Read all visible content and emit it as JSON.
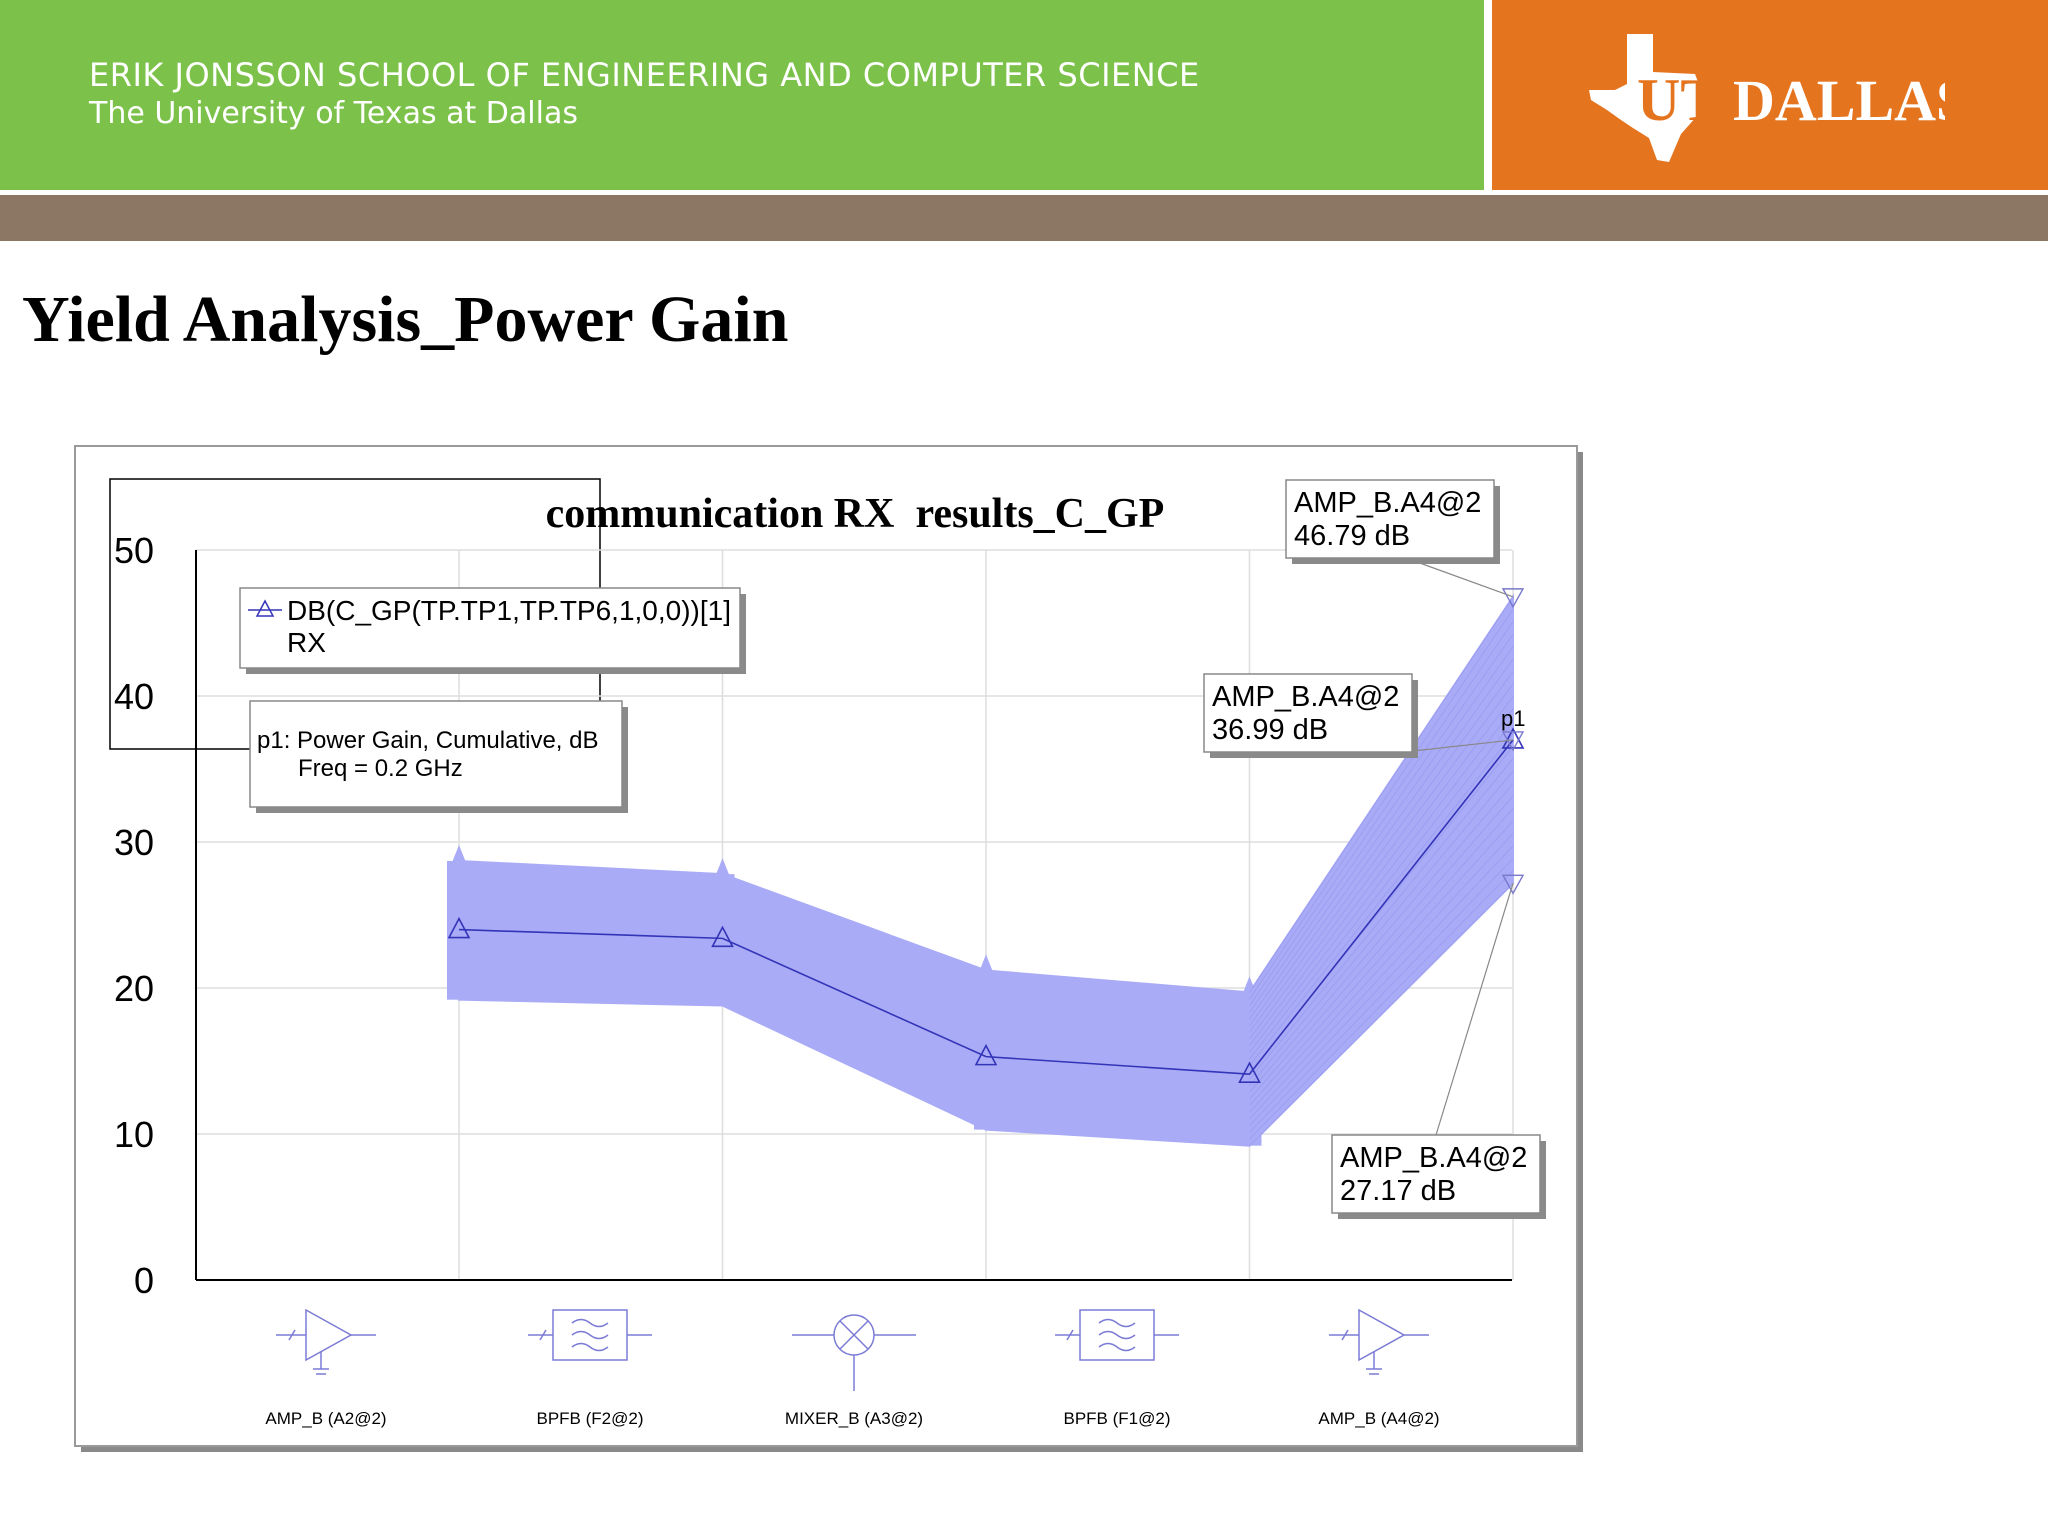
{
  "header": {
    "school": "ERIK JONSSON SCHOOL OF ENGINEERING AND COMPUTER SCIENCE",
    "university": "The University of Texas at Dallas",
    "logo_text_ut": "UT",
    "logo_text_dallas": "DALLAS",
    "green_color": "#7cc24a",
    "orange_color": "#e5741f",
    "brown_color": "#8b7764"
  },
  "slide": {
    "title": "Yield Analysis_Power Gain"
  },
  "chart_data": {
    "type": "line",
    "title": "communication RX  results_C_GP",
    "ylim": [
      0,
      50
    ],
    "yticks": [
      "0",
      "10",
      "20",
      "30",
      "40",
      "50"
    ],
    "categories": [
      "AMP_B (A2@2)",
      "BPFB (F2@2)",
      "MIXER_B (A3@2)",
      "BPFB (F1@2)",
      "AMP_B (A4@2)"
    ],
    "component_icons": [
      "amplifier-icon",
      "bandpass-filter-icon",
      "mixer-icon",
      "bandpass-filter-icon",
      "amplifier-icon"
    ],
    "legend": {
      "series_label": "DB(C_GP(TP.TP1,TP.TP6,1,0,0))[1]",
      "series_sublabel": "RX",
      "marker_note_line1": "p1: Power Gain, Cumulative, dB",
      "marker_note_line2": "Freq = 0.2 GHz"
    },
    "series": [
      {
        "name": "DB(C_GP(TP.TP1,TP.TP6,1,0,0))[1]",
        "values": [
          24.0,
          23.4,
          15.3,
          14.1,
          36.99
        ]
      }
    ],
    "yield_band": {
      "upper": [
        28.7,
        27.8,
        21.2,
        19.7,
        46.79
      ],
      "lower": [
        19.2,
        18.8,
        10.3,
        9.2,
        27.17
      ],
      "color": "#a9abf6"
    },
    "series_color": "#3434b8",
    "marker_label": "p1",
    "annotations": [
      {
        "name": "AMP_B.A4@2",
        "value": "46.79 dB",
        "y": 46.79
      },
      {
        "name": "AMP_B.A4@2",
        "value": "36.99 dB",
        "y": 36.99
      },
      {
        "name": "AMP_B.A4@2",
        "value": "27.17 dB",
        "y": 27.17
      }
    ]
  }
}
